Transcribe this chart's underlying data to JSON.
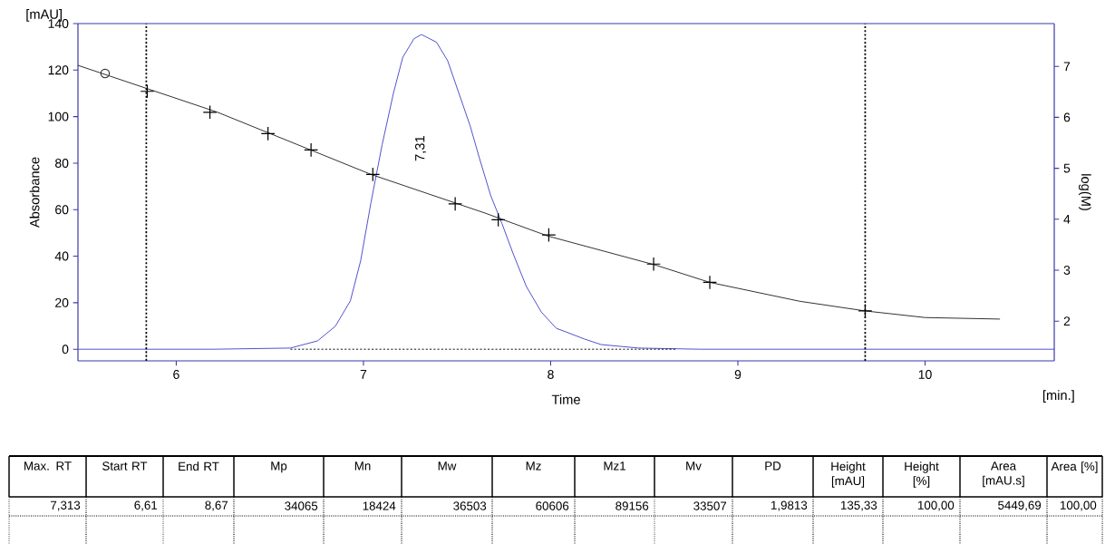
{
  "chart_data": {
    "type": "line",
    "xlabel": "Time",
    "ylabel": "Absorbance",
    "y2label": "log(M)",
    "xlim": [
      5.475,
      10.69
    ],
    "xticks": [
      6,
      7,
      8,
      9,
      10
    ],
    "ylim": [
      -5,
      140
    ],
    "yticks": [
      0,
      20,
      40,
      60,
      80,
      100,
      120,
      140
    ],
    "y2lim": [
      1.22,
      7.84
    ],
    "y2ticks": [
      2,
      3,
      4,
      5,
      6,
      7
    ],
    "ref_lines": [
      {
        "axis": "x",
        "value": 5.84,
        "color": "#000000",
        "line_style": "dotted"
      },
      {
        "axis": "x",
        "value": 9.68,
        "color": "#000000",
        "line_style": "dotted"
      }
    ],
    "series": [
      {
        "color": "#4646c8",
        "x": [
          5.475,
          5.8,
          6.2,
          6.61,
          6.755,
          6.85,
          6.93,
          6.985,
          7.04,
          7.1,
          7.16,
          7.21,
          7.27,
          7.31,
          7.39,
          7.45,
          7.51,
          7.57,
          7.62,
          7.68,
          7.74,
          7.8,
          7.87,
          7.95,
          8.03,
          8.08,
          8.18,
          8.27,
          8.47,
          8.8,
          9.5,
          10.2,
          10.69
        ],
        "values": [
          0,
          0,
          0,
          0.5,
          3.6,
          9.9,
          20.8,
          38,
          63,
          88,
          110,
          125.5,
          133.5,
          135.3,
          132,
          124,
          110,
          96,
          82,
          66,
          54,
          41,
          27,
          16,
          9,
          7.5,
          4.4,
          2,
          0.5,
          0,
          0,
          0,
          0
        ]
      },
      {
        "color": "#000000",
        "line_style": "dotted",
        "x": [
          6.61,
          8.67
        ],
        "values": [
          0,
          0
        ]
      },
      {
        "axis": "y2",
        "color": "#222222",
        "x": [
          5.475,
          6.22,
          7.04,
          7.65,
          7.985,
          8.56,
          8.85,
          9.33,
          9.68,
          10.0,
          10.4
        ],
        "values": [
          7.02,
          6.1,
          4.88,
          4.12,
          3.67,
          3.1,
          2.76,
          2.39,
          2.2,
          2.07,
          2.04
        ]
      },
      {
        "type": "scatter",
        "axis": "y2",
        "marker": "cross",
        "color": "#000000",
        "x": [
          5.845,
          6.18,
          6.49,
          6.72,
          7.05,
          7.49,
          7.72,
          7.99,
          8.55,
          8.85,
          9.68
        ],
        "values": [
          6.51,
          6.1,
          5.68,
          5.36,
          4.88,
          4.3,
          3.99,
          3.69,
          3.12,
          2.76,
          2.2
        ]
      },
      {
        "type": "scatter",
        "axis": "y2",
        "marker": "circle",
        "color": "#333333",
        "x": [
          5.62
        ],
        "values": [
          6.86
        ]
      }
    ],
    "annotations": [
      "7,31",
      "[mAU]",
      "[min.]",
      "Max. RT",
      "Start RT",
      "End RT",
      "Mp",
      "Mn",
      "Mw",
      "Mz",
      "Mz1",
      "Mv",
      "PD",
      "Height [mAU]",
      "Height [%]",
      "Area [mAU.s]",
      "Area [%]",
      "7,313",
      "6,61",
      "8,67",
      "34065",
      "18424",
      "36503",
      "60606",
      "89156",
      "33507",
      "1,9813",
      "135,33",
      "100,00",
      "5449,69",
      "100,00"
    ]
  }
}
